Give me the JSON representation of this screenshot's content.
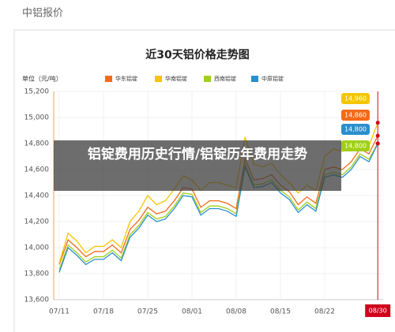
{
  "header": {
    "title": "中铝报价"
  },
  "overlay": {
    "text": "铝锭费用历史行情/铝锭历年费用走势"
  },
  "chart_data": {
    "type": "line",
    "title": "近30天铝价格走势图",
    "unit_label": "单位（元/吨）",
    "categories": [
      "07/11",
      null,
      null,
      null,
      null,
      "07/18",
      null,
      null,
      null,
      null,
      "07/25",
      null,
      null,
      null,
      null,
      "08/01",
      null,
      null,
      null,
      null,
      "08/08",
      null,
      null,
      null,
      null,
      "08/15",
      null,
      null,
      null,
      null,
      "08/22",
      null,
      null,
      null,
      null,
      null,
      "08/30"
    ],
    "highlight_color": "#d0021b",
    "series": [
      {
        "name": "华东铝锭",
        "color": "#f26b1d",
        "values": [
          13870,
          14060,
          14000,
          13930,
          13970,
          13970,
          14020,
          13960,
          14140,
          14210,
          14310,
          14260,
          14280,
          14360,
          14460,
          14450,
          14310,
          14360,
          14360,
          14340,
          14300,
          14680,
          14520,
          14530,
          14560,
          14480,
          14430,
          14330,
          14390,
          14340,
          14600,
          14620,
          14600,
          14660,
          14760,
          14720,
          14860
        ],
        "value_labels": [
          null,
          null,
          null,
          null,
          null,
          null,
          null,
          null,
          null,
          null,
          null,
          null,
          null,
          null,
          null,
          null,
          null,
          null,
          null,
          null,
          null,
          null,
          null,
          null,
          null,
          null,
          null,
          null,
          null,
          null,
          null,
          null,
          null,
          null,
          null,
          null,
          "14,860"
        ]
      },
      {
        "name": "华南铝锭",
        "color": "#f5c500",
        "values": [
          13880,
          14110,
          14050,
          13960,
          14010,
          14010,
          14060,
          14000,
          14200,
          14280,
          14400,
          14330,
          14360,
          14450,
          14550,
          14520,
          14440,
          14500,
          14500,
          14480,
          14460,
          14850,
          14640,
          14620,
          14650,
          14560,
          14500,
          14420,
          14480,
          14440,
          14700,
          14760,
          14740,
          14760,
          14800,
          14780,
          14960
        ],
        "value_labels": [
          null,
          null,
          null,
          null,
          null,
          null,
          null,
          null,
          null,
          null,
          null,
          null,
          null,
          null,
          null,
          null,
          null,
          null,
          null,
          null,
          null,
          null,
          null,
          null,
          null,
          null,
          null,
          null,
          null,
          null,
          null,
          null,
          null,
          null,
          null,
          null,
          "14,960"
        ]
      },
      {
        "name": "西南铝锭",
        "color": "#a0cf1a",
        "values": [
          13830,
          14020,
          13960,
          13890,
          13930,
          13930,
          13980,
          13920,
          14100,
          14170,
          14270,
          14220,
          14240,
          14320,
          14420,
          14410,
          14270,
          14320,
          14320,
          14300,
          14260,
          14640,
          14480,
          14490,
          14520,
          14440,
          14390,
          14290,
          14350,
          14300,
          14560,
          14580,
          14560,
          14620,
          14720,
          14680,
          14800
        ],
        "value_labels": [
          null,
          null,
          null,
          null,
          null,
          null,
          null,
          null,
          null,
          null,
          null,
          null,
          null,
          null,
          null,
          null,
          null,
          null,
          null,
          null,
          null,
          null,
          null,
          null,
          null,
          null,
          null,
          null,
          null,
          null,
          null,
          null,
          null,
          null,
          null,
          null,
          "14,800"
        ]
      },
      {
        "name": "中原铝锭",
        "color": "#2a8fcb",
        "values": [
          13810,
          14000,
          13940,
          13870,
          13910,
          13910,
          13960,
          13900,
          14080,
          14150,
          14250,
          14200,
          14220,
          14300,
          14400,
          14390,
          14250,
          14300,
          14300,
          14280,
          14240,
          14620,
          14460,
          14470,
          14500,
          14420,
          14370,
          14270,
          14330,
          14280,
          14540,
          14560,
          14540,
          14600,
          14700,
          14660,
          14800
        ],
        "value_labels": [
          null,
          null,
          null,
          null,
          null,
          null,
          null,
          null,
          null,
          null,
          null,
          null,
          null,
          null,
          null,
          null,
          null,
          null,
          null,
          null,
          null,
          null,
          null,
          null,
          null,
          null,
          null,
          null,
          null,
          null,
          null,
          null,
          null,
          null,
          null,
          null,
          "14,800"
        ]
      }
    ],
    "ylim": [
      13600,
      15200
    ],
    "yticks": [
      {
        "value": 13600,
        "label": "13,600"
      },
      {
        "value": 13800,
        "label": "13,800"
      },
      {
        "value": 14000,
        "label": "14,000"
      },
      {
        "value": 14200,
        "label": "14,200"
      },
      {
        "value": 14400,
        "label": "14,400"
      },
      {
        "value": 14600,
        "label": "14,600"
      },
      {
        "value": 14800,
        "label": "14,800"
      },
      {
        "value": 15000,
        "label": "15,000"
      },
      {
        "value": 15200,
        "label": "15,200"
      }
    ],
    "grid": true
  }
}
